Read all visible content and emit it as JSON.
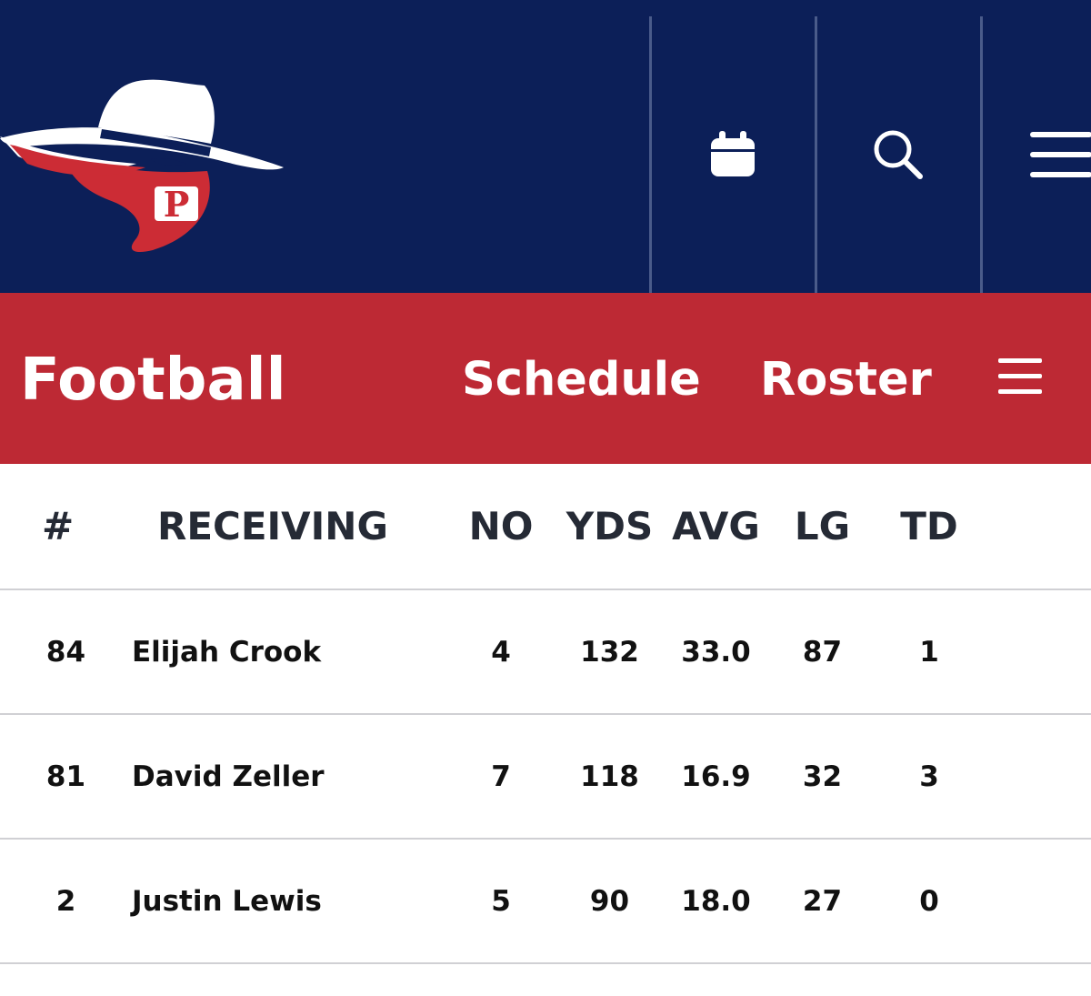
{
  "header": {
    "icons": {
      "calendar": "calendar-icon",
      "search": "search-icon",
      "menu": "menu-icon"
    },
    "colors": {
      "navy": "#0c1f58",
      "red": "#bd2934"
    }
  },
  "subnav": {
    "title": "Football",
    "schedule": "Schedule",
    "roster": "Roster"
  },
  "table": {
    "columns": [
      "#",
      "RECEIVING",
      "NO",
      "YDS",
      "AVG",
      "LG",
      "TD"
    ],
    "rows": [
      {
        "num": "84",
        "name": "Elijah Crook",
        "no": "4",
        "yds": "132",
        "avg": "33.0",
        "lg": "87",
        "td": "1"
      },
      {
        "num": "81",
        "name": "David Zeller",
        "no": "7",
        "yds": "118",
        "avg": "16.9",
        "lg": "32",
        "td": "3"
      },
      {
        "num": "2",
        "name": "Justin Lewis",
        "no": "5",
        "yds": "90",
        "avg": "18.0",
        "lg": "27",
        "td": "0"
      }
    ]
  }
}
